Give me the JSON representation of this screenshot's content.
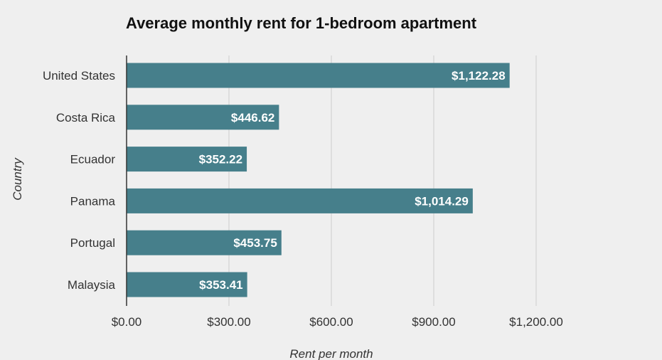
{
  "chart_data": {
    "type": "bar",
    "orientation": "horizontal",
    "title": "Average monthly rent for 1-bedroom apartment",
    "xlabel": "Rent per month",
    "ylabel": "Country",
    "categories": [
      "United States",
      "Costa Rica",
      "Ecuador",
      "Panama",
      "Portugal",
      "Malaysia"
    ],
    "values": [
      1122.28,
      446.62,
      352.22,
      1014.29,
      453.75,
      353.41
    ],
    "value_labels": [
      "$1,122.28",
      "$446.62",
      "$352.22",
      "$1,014.29",
      "$453.75",
      "$353.41"
    ],
    "xticks": [
      0,
      300,
      600,
      900,
      1200
    ],
    "xtick_labels": [
      "$0.00",
      "$300.00",
      "$600.00",
      "$900.00",
      "$1,200.00"
    ],
    "xlim": [
      0,
      1200
    ],
    "grid": true,
    "legend": "none",
    "bar_color": "#467f8b",
    "grid_color": "#cccccc",
    "background_color": "#efefef"
  }
}
